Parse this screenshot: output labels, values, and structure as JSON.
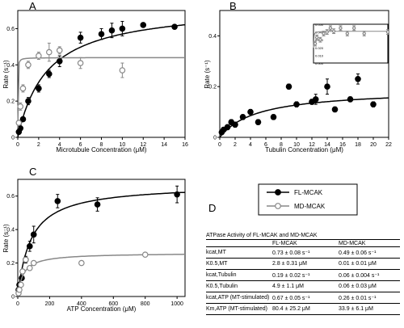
{
  "panel_labels": [
    "A",
    "B",
    "C",
    "D"
  ],
  "chart_data": [
    {
      "panel": "A",
      "type": "scatter",
      "xlabel": "Microtubule Concentration (μM)",
      "ylabel": "Rate (s⁻¹)",
      "xlim": [
        0,
        16
      ],
      "ylim": [
        0,
        0.7
      ],
      "xticks": [
        0,
        2,
        4,
        6,
        8,
        10,
        12,
        14,
        16
      ],
      "yticks": [
        0,
        0.2,
        0.4,
        0.6
      ],
      "series": [
        {
          "name": "FL-MCAK",
          "marker": "filled",
          "color": "#000000",
          "x": [
            0.1,
            0.25,
            0.5,
            1,
            2,
            3,
            4,
            6,
            8,
            9,
            10,
            12,
            15
          ],
          "y": [
            0.03,
            0.05,
            0.1,
            0.2,
            0.27,
            0.35,
            0.42,
            0.55,
            0.57,
            0.59,
            0.6,
            0.62,
            0.61
          ],
          "err": [
            0.01,
            0.01,
            0.01,
            0.02,
            0.02,
            0.02,
            0.03,
            0.03,
            0.03,
            0.04,
            0.04,
            0.01,
            0.01
          ],
          "fit": {
            "vmax": 0.73,
            "k": 2.8
          }
        },
        {
          "name": "MD-MCAK",
          "marker": "open",
          "color": "#888888",
          "x": [
            0.1,
            0.25,
            0.5,
            1,
            2,
            3,
            4,
            6,
            10
          ],
          "y": [
            0.08,
            0.17,
            0.27,
            0.4,
            0.45,
            0.47,
            0.48,
            0.41,
            0.37
          ],
          "err": [
            0.01,
            0.02,
            0.02,
            0.02,
            0.02,
            0.05,
            0.02,
            0.03,
            0.04
          ],
          "fit": {
            "vmax": 0.44,
            "k": 0.01,
            "baseline": 0.05
          }
        }
      ]
    },
    {
      "panel": "B",
      "type": "scatter",
      "xlabel": "Tubulin Concentration (μM)",
      "ylabel": "Rate (s⁻¹)",
      "xlim": [
        0,
        22
      ],
      "ylim": [
        0,
        0.5
      ],
      "xticks": [
        0,
        2,
        4,
        6,
        8,
        10,
        12,
        14,
        16,
        18,
        20,
        22
      ],
      "yticks": [
        0,
        0.2,
        0.4
      ],
      "series": [
        {
          "name": "FL-MCAK",
          "marker": "filled",
          "color": "#000000",
          "x": [
            0.25,
            0.5,
            1,
            1.5,
            2,
            3,
            4,
            5,
            7,
            9,
            10,
            12,
            12.5,
            14,
            15,
            17,
            18,
            20
          ],
          "y": [
            0.02,
            0.03,
            0.04,
            0.06,
            0.05,
            0.08,
            0.1,
            0.06,
            0.08,
            0.2,
            0.13,
            0.14,
            0.15,
            0.2,
            0.11,
            0.15,
            0.23,
            0.13
          ],
          "err": [
            0.005,
            0.005,
            0.01,
            0.01,
            0.01,
            0.01,
            0.01,
            0.01,
            0.01,
            0.01,
            0.01,
            0.01,
            0.02,
            0.03,
            0.01,
            0.01,
            0.02,
            0.01
          ],
          "fit": {
            "vmax": 0.19,
            "k": 4.9
          }
        }
      ]
    },
    {
      "panel": "B-inset",
      "type": "scatter",
      "xlim": [
        0,
        22
      ],
      "ylim": [
        0,
        0.05
      ],
      "ytick_labels": [
        "0.050",
        "0.040",
        "0.030",
        "0.020",
        "0.010",
        "0.000"
      ],
      "series": [
        {
          "name": "MD-MCAK",
          "marker": "open",
          "color": "#888888",
          "x": [
            0.5,
            1,
            2,
            3,
            4,
            5,
            6,
            8,
            10,
            12,
            15,
            22
          ],
          "y": [
            0.025,
            0.033,
            0.03,
            0.038,
            0.04,
            0.045,
            0.041,
            0.045,
            0.038,
            0.045,
            0.038,
            0.04
          ],
          "err": [
            0.003,
            0.003,
            0.003,
            0.003,
            0.003,
            0.003,
            0.003,
            0.003,
            0.003,
            0.003,
            0.003,
            0.003
          ],
          "fit": {
            "vmax": 0.041,
            "k": 0.06,
            "baseline": 0.02
          }
        }
      ]
    },
    {
      "panel": "C",
      "type": "scatter",
      "xlabel": "ATP Concentration (μM)",
      "ylabel": "Rate (s⁻¹)",
      "xlim": [
        0,
        1050
      ],
      "ylim": [
        0,
        0.7
      ],
      "xticks": [
        0,
        200,
        400,
        600,
        800,
        1000
      ],
      "yticks": [
        0,
        0.2,
        0.4,
        0.6
      ],
      "series": [
        {
          "name": "FL-MCAK",
          "marker": "filled",
          "color": "#000000",
          "x": [
            5,
            10,
            25,
            50,
            75,
            100,
            250,
            500,
            1000
          ],
          "y": [
            0.04,
            0.07,
            0.11,
            0.22,
            0.3,
            0.37,
            0.57,
            0.55,
            0.61
          ],
          "err": [
            0.01,
            0.01,
            0.01,
            0.02,
            0.03,
            0.05,
            0.04,
            0.04,
            0.05
          ],
          "fit": {
            "vmax": 0.67,
            "k": 80.4
          }
        },
        {
          "name": "MD-MCAK",
          "marker": "open",
          "color": "#888888",
          "x": [
            5,
            10,
            20,
            30,
            50,
            75,
            100,
            400,
            800
          ],
          "y": [
            0.02,
            0.04,
            0.07,
            0.15,
            0.22,
            0.17,
            0.2,
            0.2,
            0.25
          ],
          "err": [
            0.01,
            0.01,
            0.01,
            0.01,
            0.01,
            0.01,
            0.01,
            0.01,
            0.01
          ],
          "fit": {
            "vmax": 0.26,
            "k": 33.9
          }
        }
      ]
    }
  ],
  "legend": {
    "items": [
      {
        "label": "FL-MCAK",
        "marker": "filled",
        "color": "#000000"
      },
      {
        "label": "MD-MCAK",
        "marker": "open",
        "color": "#888888"
      }
    ]
  },
  "table": {
    "caption": "ATPase Activity of FL-MCAK and MD-MCAK",
    "headers": [
      "",
      "FL-MCAK",
      "MD-MCAK"
    ],
    "rows": [
      {
        "label": "kcat,MT",
        "fl": "0.73 ± 0.08 s⁻¹",
        "md": "0.49 ± 0.06 s⁻¹"
      },
      {
        "label": "K0.5,MT",
        "fl": "2.8 ± 0.31 μM",
        "md": "0.01 ± 0.01 μM"
      },
      {
        "label": "kcat,Tubulin",
        "fl": "0.19 ± 0.02 s⁻¹",
        "md": "0.06 ± 0.004 s⁻¹"
      },
      {
        "label": "K0.5,Tubulin",
        "fl": "4.9 ± 1.1 μM",
        "md": "0.06 ± 0.03 μM"
      },
      {
        "label": "kcat,ATP (MT-stimulated)",
        "fl": "0.67 ± 0.05 s⁻¹",
        "md": "0.26 ± 0.01 s⁻¹"
      },
      {
        "label": "Km,ATP (MT-stimulated)",
        "fl": "80.4 ± 25.2 μM",
        "md": "33.9 ± 6.1 μM"
      }
    ]
  }
}
